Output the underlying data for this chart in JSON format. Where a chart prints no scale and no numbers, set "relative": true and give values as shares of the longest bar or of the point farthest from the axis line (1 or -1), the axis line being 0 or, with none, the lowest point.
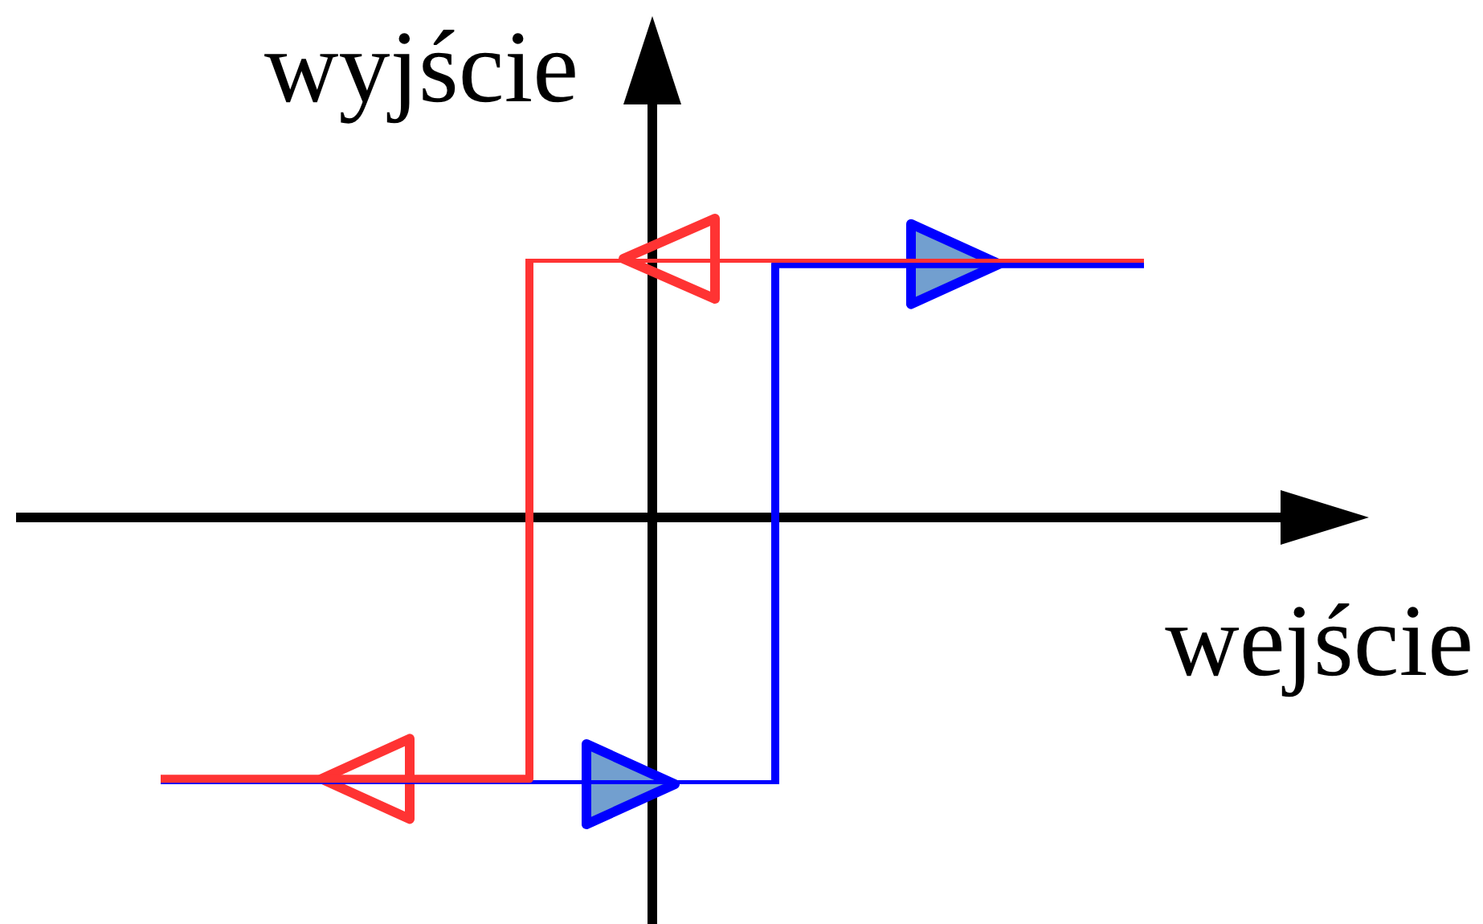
{
  "chart_data": {
    "type": "step",
    "relative": true,
    "xlabel": "wejście",
    "ylabel": "wyjście",
    "line_style": "solid",
    "categories": [
      null,
      null,
      null,
      null,
      null,
      null,
      null,
      null,
      null
    ],
    "series": [
      {
        "color": "#0000ff",
        "values": [
          -1,
          -1,
          -1,
          -1,
          -1,
          0.95,
          0.95,
          0.95,
          0.95
        ]
      },
      {
        "color": "#ff3333",
        "values": [
          -0.98,
          -0.98,
          -0.98,
          0.97,
          0.97,
          0.97,
          0.97,
          0.97,
          0.97
        ]
      }
    ]
  }
}
